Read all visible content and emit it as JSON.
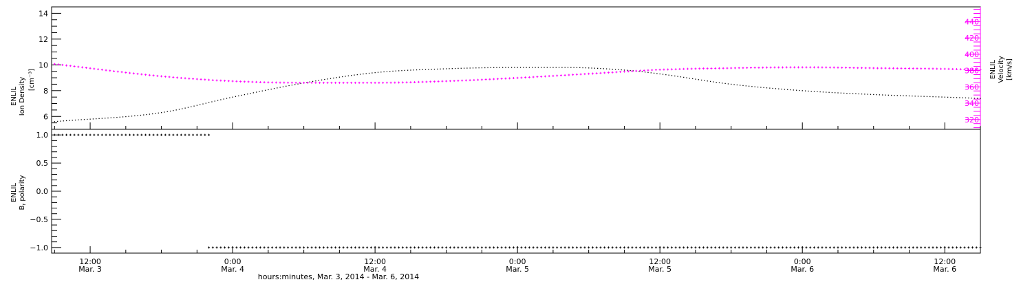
{
  "chart_data": [
    {
      "type": "line",
      "panel": "top",
      "ylabel_left": [
        "ENLIL",
        "Ion Density",
        "[cm⁻³]"
      ],
      "ylabel_right": [
        "ENLIL",
        "Velocity",
        "[km/s]"
      ],
      "ylim_left": [
        5,
        14.5
      ],
      "ylim_right": [
        308,
        458
      ],
      "yticks_left": [
        "6",
        "8",
        "10",
        "12",
        "14"
      ],
      "yticks_left_values": [
        6,
        8,
        10,
        12,
        14
      ],
      "yticks_right": [
        "320",
        "340",
        "360",
        "380",
        "400",
        "420",
        "440"
      ],
      "yticks_right_values": [
        320,
        340,
        360,
        380,
        400,
        420,
        440
      ],
      "grid": false,
      "series": [
        {
          "axis": "left",
          "color": "#000000",
          "marker": "dot",
          "x": [
            "2014-03-03 09:00",
            "2014-03-03 18:00",
            "2014-03-04 00:00",
            "2014-03-04 06:00",
            "2014-03-04 12:00",
            "2014-03-04 18:00",
            "2014-03-05 00:00",
            "2014-03-05 04:00",
            "2014-03-05 09:00",
            "2014-03-05 12:00",
            "2014-03-05 18:00",
            "2014-03-06 00:00",
            "2014-03-06 06:00",
            "2014-03-06 12:00",
            "2014-03-06 15:00"
          ],
          "values": [
            5.6,
            6.3,
            7.5,
            8.6,
            9.4,
            9.7,
            9.8,
            9.8,
            9.6,
            9.3,
            8.5,
            8.0,
            7.7,
            7.5,
            7.4
          ]
        },
        {
          "axis": "right",
          "color": "#ff00ff",
          "marker": "cross",
          "x": [
            "2014-03-03 09:00",
            "2014-03-03 18:00",
            "2014-03-04 00:00",
            "2014-03-04 06:00",
            "2014-03-04 12:00",
            "2014-03-04 18:00",
            "2014-03-05 00:00",
            "2014-03-05 06:00",
            "2014-03-05 12:00",
            "2014-03-05 18:00",
            "2014-03-06 00:00",
            "2014-03-06 06:00",
            "2014-03-06 12:00",
            "2014-03-06 15:00"
          ],
          "values": [
            388,
            373,
            367,
            365,
            365,
            367,
            371,
            376,
            381,
            383,
            384,
            383,
            382,
            381
          ]
        }
      ]
    },
    {
      "type": "scatter",
      "panel": "bottom",
      "ylabel": [
        "ENLIL",
        "B",
        "r",
        "polarity"
      ],
      "ylim": [
        -1.1,
        1.1
      ],
      "yticks": [
        "1.0",
        "0.5",
        "0.0",
        "−0.5",
        "−1.0"
      ],
      "yticks_values": [
        1.0,
        0.5,
        0.0,
        -0.5,
        -1.0
      ],
      "grid": false,
      "series": [
        {
          "color": "#000000",
          "segments": [
            {
              "x_start": "2014-03-03 09:00",
              "x_end": "2014-03-03 22:00",
              "value": 1.0
            },
            {
              "x_start": "2014-03-03 22:00",
              "x_end": "2014-03-06 15:00",
              "value": -1.0
            }
          ]
        }
      ]
    }
  ],
  "x_axis": {
    "start": "2014-03-03 08:45",
    "end": "2014-03-06 15:00",
    "major_tick_labels": [
      {
        "time": "12:00",
        "date": "Mar. 3",
        "x": "2014-03-03 12:00"
      },
      {
        "time": "0:00",
        "date": "Mar. 4",
        "x": "2014-03-04 00:00"
      },
      {
        "time": "12:00",
        "date": "Mar. 4",
        "x": "2014-03-04 12:00"
      },
      {
        "time": "0:00",
        "date": "Mar. 5",
        "x": "2014-03-05 00:00"
      },
      {
        "time": "12:00",
        "date": "Mar. 5",
        "x": "2014-03-05 12:00"
      },
      {
        "time": "0:00",
        "date": "Mar. 6",
        "x": "2014-03-06 00:00"
      },
      {
        "time": "12:00",
        "date": "Mar. 6",
        "x": "2014-03-06 12:00"
      }
    ],
    "xlabel": "hours:minutes, Mar.  3, 2014 - Mar.  6, 2014"
  },
  "colors": {
    "frame": "#000000",
    "velocity_axis": "#ff00ff"
  }
}
